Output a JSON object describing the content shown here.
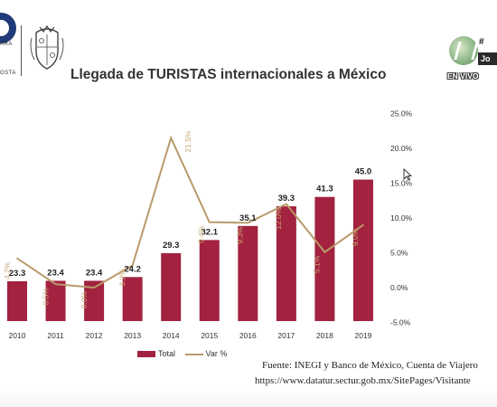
{
  "header": {
    "logo_text_1": "ARA",
    "logo_text_2": "OSTA",
    "title": "Llegada de TURISTAS internacionales a México"
  },
  "video": {
    "live_label": "EN VIVO",
    "flag_text": "#",
    "name_text": "Jo"
  },
  "legend": {
    "bar_label": "Total",
    "line_label": "Var %"
  },
  "source": {
    "line1": "Fuente: INEGI y Banco de México, Cuenta de Viajero",
    "line2": "https://www.datatur.sectur.gob.mx/SitePages/Visitante"
  },
  "colors": {
    "bar": "#a2223f",
    "line": "#b99a6a",
    "line_label": "#c9a876"
  },
  "chart_data": {
    "type": "bar",
    "title": "Llegada de TURISTAS internacionales a México",
    "categories": [
      "2010",
      "2011",
      "2012",
      "2013",
      "2014",
      "2015",
      "2016",
      "2017",
      "2018",
      "2019"
    ],
    "series": [
      {
        "name": "Total",
        "type": "bar",
        "values": [
          23.3,
          23.4,
          23.4,
          24.2,
          29.3,
          32.1,
          35.1,
          39.3,
          41.3,
          45.0
        ],
        "labels": [
          "23.3",
          "23.4",
          "23.4",
          "24.2",
          "29.3",
          "32.1",
          "35.1",
          "39.3",
          "41.3",
          "45.0"
        ]
      },
      {
        "name": "Var %",
        "type": "line",
        "axis": "right",
        "values": [
          4.2,
          0.5,
          0.0,
          3.2,
          21.5,
          9.4,
          9.3,
          12.0,
          5.1,
          9.0
        ],
        "labels": [
          "4.2%",
          "0.5%",
          "0.0%",
          "3.2%",
          "21.5%",
          "9.4%",
          "9.3%",
          "12.0%",
          "5.1%",
          "9.0%"
        ]
      }
    ],
    "y2_ticks": [
      "25.0%",
      "20.0%",
      "15.0%",
      "10.0%",
      "5.0%",
      "0.0%",
      "-5.0%"
    ],
    "y2lim": [
      -5,
      25
    ],
    "legend": "bottom",
    "grid": false
  }
}
